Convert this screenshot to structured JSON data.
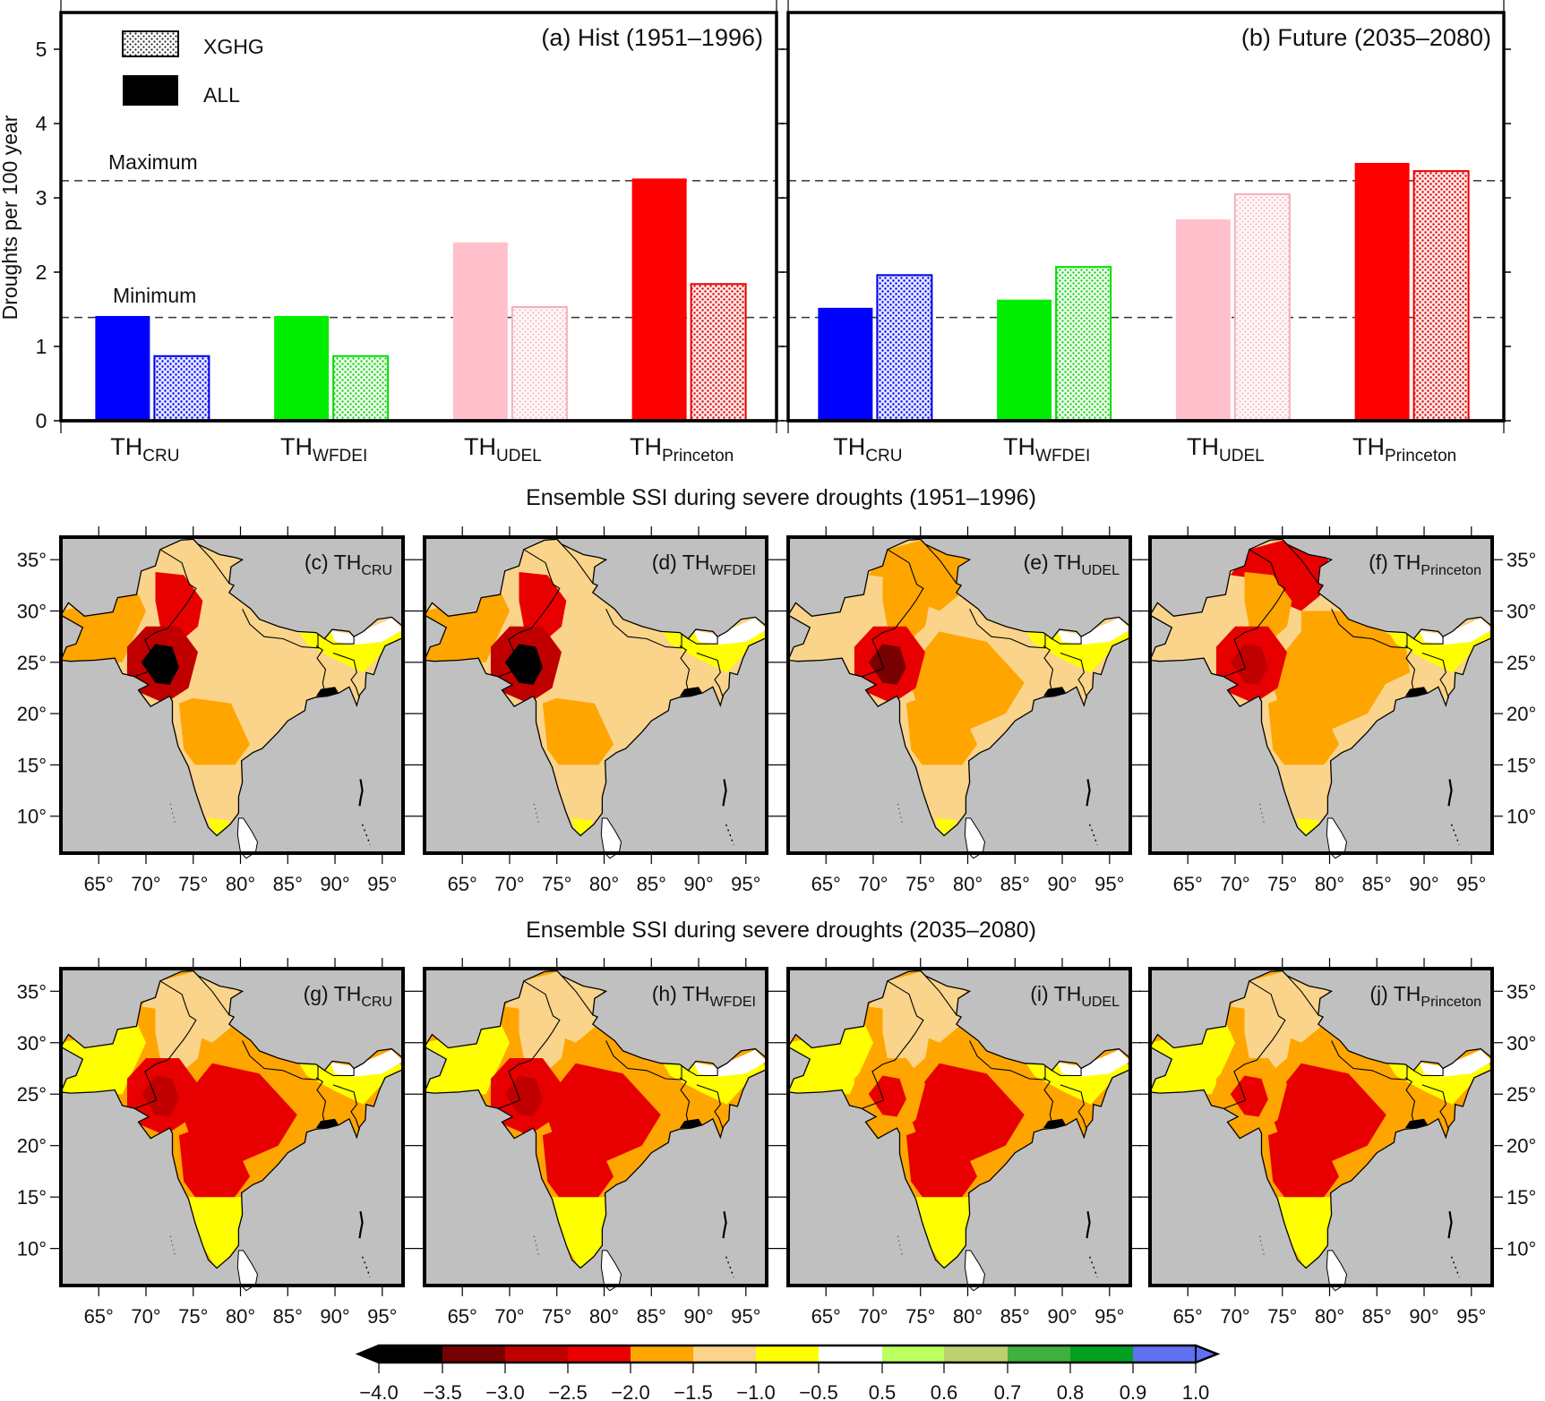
{
  "chart_data": [
    {
      "id": "a",
      "type": "bar",
      "title": "(a) Hist (1951–1996)",
      "ylabel": "Droughts per 100 year",
      "xlabel": "",
      "ylim": [
        0,
        5.5
      ],
      "yticks": [
        0,
        1,
        2,
        3,
        4,
        5
      ],
      "categories": [
        {
          "base": "TH",
          "sub": "CRU",
          "color": "#0000ff"
        },
        {
          "base": "TH",
          "sub": "WFDEI",
          "color": "#00ee00"
        },
        {
          "base": "TH",
          "sub": "UDEL",
          "color": "#ffc0cb"
        },
        {
          "base": "TH",
          "sub": "Princeton",
          "color": "#ff0000"
        }
      ],
      "series": [
        {
          "name": "ALL",
          "pattern": "solid",
          "values": [
            1.41,
            1.41,
            2.4,
            3.26
          ]
        },
        {
          "name": "XGHG",
          "pattern": "dotted",
          "values": [
            0.87,
            0.87,
            1.53,
            1.84
          ]
        }
      ],
      "reference_lines": [
        {
          "label": "Maximum",
          "value": 3.23
        },
        {
          "label": "Minimum",
          "value": 1.39
        }
      ],
      "legend": {
        "placement": "top-left",
        "entries": [
          "XGHG",
          "ALL"
        ]
      },
      "grid": false
    },
    {
      "id": "b",
      "type": "bar",
      "title": "(b) Future (2035–2080)",
      "ylabel": "",
      "xlabel": "",
      "ylim": [
        0,
        5.5
      ],
      "yticks": [
        0,
        1,
        2,
        3,
        4,
        5
      ],
      "categories": [
        {
          "base": "TH",
          "sub": "CRU",
          "color": "#0000ff"
        },
        {
          "base": "TH",
          "sub": "WFDEI",
          "color": "#00ee00"
        },
        {
          "base": "TH",
          "sub": "UDEL",
          "color": "#ffc0cb"
        },
        {
          "base": "TH",
          "sub": "Princeton",
          "color": "#ff0000"
        }
      ],
      "series": [
        {
          "name": "ALL",
          "pattern": "solid",
          "values": [
            1.52,
            1.63,
            2.71,
            3.47
          ]
        },
        {
          "name": "XGHG",
          "pattern": "dotted",
          "values": [
            1.96,
            2.07,
            3.05,
            3.36
          ]
        }
      ],
      "reference_lines": [
        {
          "value": 3.23
        },
        {
          "value": 1.39
        }
      ],
      "grid": false
    },
    {
      "id": "maps",
      "type": "heatmap",
      "sections": [
        {
          "title": "Ensemble SSI during severe droughts (1951–1996)"
        },
        {
          "title": "Ensemble SSI during severe droughts (2035–2080)"
        }
      ],
      "lon_ticks": [
        "65°",
        "70°",
        "75°",
        "80°",
        "85°",
        "90°",
        "95°"
      ],
      "lon_values": [
        65,
        70,
        75,
        80,
        85,
        90,
        95
      ],
      "lat_ticks": [
        "35°",
        "30°",
        "25°",
        "20°",
        "15°",
        "10°"
      ],
      "lat_values": [
        35,
        30,
        25,
        20,
        15,
        10
      ],
      "lon_range": [
        61,
        97.2
      ],
      "lat_range": [
        6.4,
        37.2
      ],
      "ocean_color": "#c0c0c0",
      "panels": [
        {
          "label": "(c) TH",
          "sub": "CRU",
          "row": 0,
          "regions": {
            "land": -1.25,
            "pak_w": -1.75,
            "north": -1.25,
            "punjab": -2.25,
            "thar": -2.75,
            "core": -3.75,
            "deccan": -1.75,
            "south": -1.25,
            "ne": -0.75,
            "himalaya": 0,
            "gangetic": -1.25,
            "srilanka": 0,
            "tip": -0.75,
            "central": -1.25
          }
        },
        {
          "label": "(d) TH",
          "sub": "WFDEI",
          "row": 0,
          "regions": {
            "land": -1.25,
            "pak_w": -1.75,
            "north": -1.25,
            "punjab": -2.25,
            "thar": -2.75,
            "core": -3.75,
            "deccan": -1.75,
            "south": -1.25,
            "ne": -0.75,
            "himalaya": 0,
            "gangetic": -1.25,
            "srilanka": 0,
            "tip": -0.75,
            "central": -1.25
          }
        },
        {
          "label": "(e) TH",
          "sub": "UDEL",
          "row": 0,
          "regions": {
            "land": -1.25,
            "pak_w": -1.25,
            "north": -1.75,
            "punjab": -1.75,
            "thar": -2.25,
            "core": -3.25,
            "deccan": -1.75,
            "south": -1.25,
            "ne": -0.75,
            "himalaya": 0,
            "gangetic": -1.25,
            "srilanka": 0,
            "tip": -0.75,
            "central": -1.75
          }
        },
        {
          "label": "(f) TH",
          "sub": "Princeton",
          "row": 0,
          "regions": {
            "land": -1.25,
            "pak_w": -1.25,
            "north": -2.25,
            "punjab": -1.75,
            "thar": -2.25,
            "core": -2.75,
            "deccan": -1.75,
            "south": -1.25,
            "ne": -0.75,
            "himalaya": 0,
            "gangetic": -1.75,
            "srilanka": 0,
            "tip": -0.75,
            "central": -1.75
          }
        },
        {
          "label": "(g) TH",
          "sub": "CRU",
          "row": 1,
          "regions": {
            "land": -1.75,
            "pak_w": -0.75,
            "north": -1.25,
            "punjab": -1.25,
            "thar": -2.25,
            "core": -2.75,
            "deccan": -2.25,
            "south": -0.75,
            "ne": -0.75,
            "himalaya": 0,
            "gangetic": -1.75,
            "srilanka": 0,
            "tip": -0.75,
            "central": -2.25
          }
        },
        {
          "label": "(h) TH",
          "sub": "WFDEI",
          "row": 1,
          "regions": {
            "land": -1.75,
            "pak_w": -0.75,
            "north": -1.25,
            "punjab": -1.25,
            "thar": -2.25,
            "core": -2.75,
            "deccan": -2.25,
            "south": -0.75,
            "ne": -0.75,
            "himalaya": 0,
            "gangetic": -1.75,
            "srilanka": 0,
            "tip": -0.75,
            "central": -2.25
          }
        },
        {
          "label": "(i) TH",
          "sub": "UDEL",
          "row": 1,
          "regions": {
            "land": -1.75,
            "pak_w": -0.75,
            "north": -1.25,
            "punjab": -1.25,
            "thar": -1.75,
            "core": -2.25,
            "deccan": -2.25,
            "south": -0.75,
            "ne": -0.75,
            "himalaya": 0,
            "gangetic": -1.75,
            "srilanka": 0,
            "tip": -0.75,
            "central": -2.25
          }
        },
        {
          "label": "(j) TH",
          "sub": "Princeton",
          "row": 1,
          "regions": {
            "land": -1.75,
            "pak_w": -0.75,
            "north": -1.25,
            "punjab": -1.25,
            "thar": -1.75,
            "core": -2.25,
            "deccan": -2.25,
            "south": -0.75,
            "ne": -0.75,
            "himalaya": 0,
            "gangetic": -1.75,
            "srilanka": 0,
            "tip": -0.75,
            "central": -2.25
          }
        }
      ]
    },
    {
      "id": "colorbar",
      "type": "colorbar",
      "boundaries": [
        -4.0,
        -3.5,
        -3.0,
        -2.5,
        -2.0,
        -1.5,
        -1.0,
        -0.5,
        0.5,
        0.6,
        0.7,
        0.8,
        0.9,
        1.0
      ],
      "tick_labels": [
        "−4.0",
        "−3.5",
        "−3.0",
        "−2.5",
        "−2.0",
        "−1.5",
        "−1.0",
        "−0.5",
        "0.5",
        "0.6",
        "0.7",
        "0.8",
        "0.9",
        "1.0"
      ],
      "colors": [
        "#000000",
        "#780000",
        "#c00000",
        "#e80000",
        "#ffa500",
        "#fad48a",
        "#ffff00",
        "#ffffff",
        "#bcff60",
        "#bcd070",
        "#40b040",
        "#00a020",
        "#6070f0"
      ],
      "under_color": "#000000",
      "over_color": "#6070f0"
    }
  ]
}
